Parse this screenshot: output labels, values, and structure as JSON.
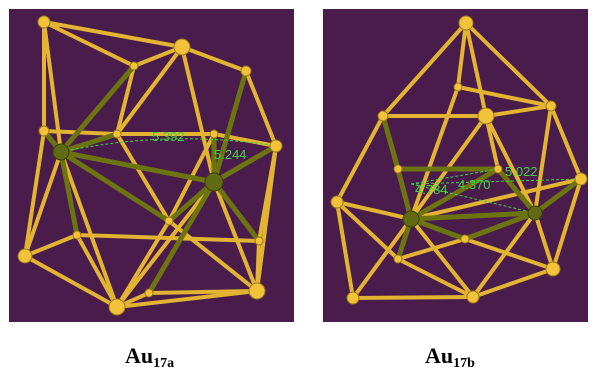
{
  "panels": [
    {
      "label_main": "Au",
      "label_sub": "17a",
      "distances": [
        "5.392",
        "5.244"
      ]
    },
    {
      "label_main": "Au",
      "label_sub": "17b",
      "distances": [
        "4.784",
        "4.370",
        "5.022"
      ]
    }
  ],
  "colors": {
    "background": "#4a1c4c",
    "gold_bond": "#e2b431",
    "dark_bond": "#6c7410",
    "distance_label": "#3fd43f"
  }
}
